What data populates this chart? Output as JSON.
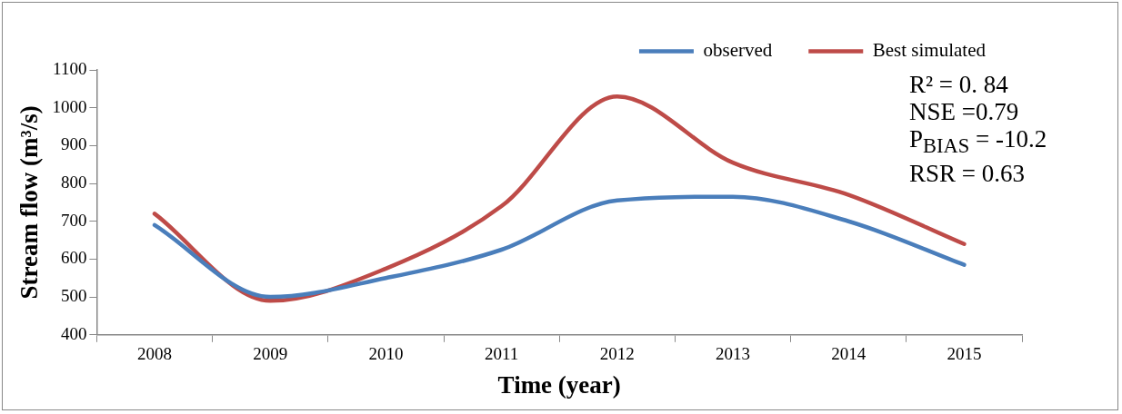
{
  "chart_data": {
    "type": "line",
    "categories": [
      "2008",
      "2009",
      "2010",
      "2011",
      "2012",
      "2013",
      "2014",
      "2015"
    ],
    "series": [
      {
        "name": "observed",
        "color": "#4a7ebb",
        "values": [
          690,
          500,
          550,
          625,
          755,
          765,
          700,
          585
        ]
      },
      {
        "name": "Best simulated",
        "color": "#be4b48",
        "values": [
          720,
          490,
          575,
          740,
          1030,
          855,
          770,
          640
        ]
      }
    ],
    "xlabel": "Time (year)",
    "ylabel": "Stream flow (m³/s)",
    "ylim": [
      400,
      1100
    ],
    "yticks": [
      400,
      500,
      600,
      700,
      800,
      900,
      1000,
      1100
    ],
    "annotations": [
      "R² = 0. 84",
      "NSE =0.79",
      "P$_{BIAS}$ = -10.2",
      "RSR = 0.63"
    ],
    "legend": "top right",
    "grid": false,
    "marker": "none",
    "line_style": "solid"
  }
}
